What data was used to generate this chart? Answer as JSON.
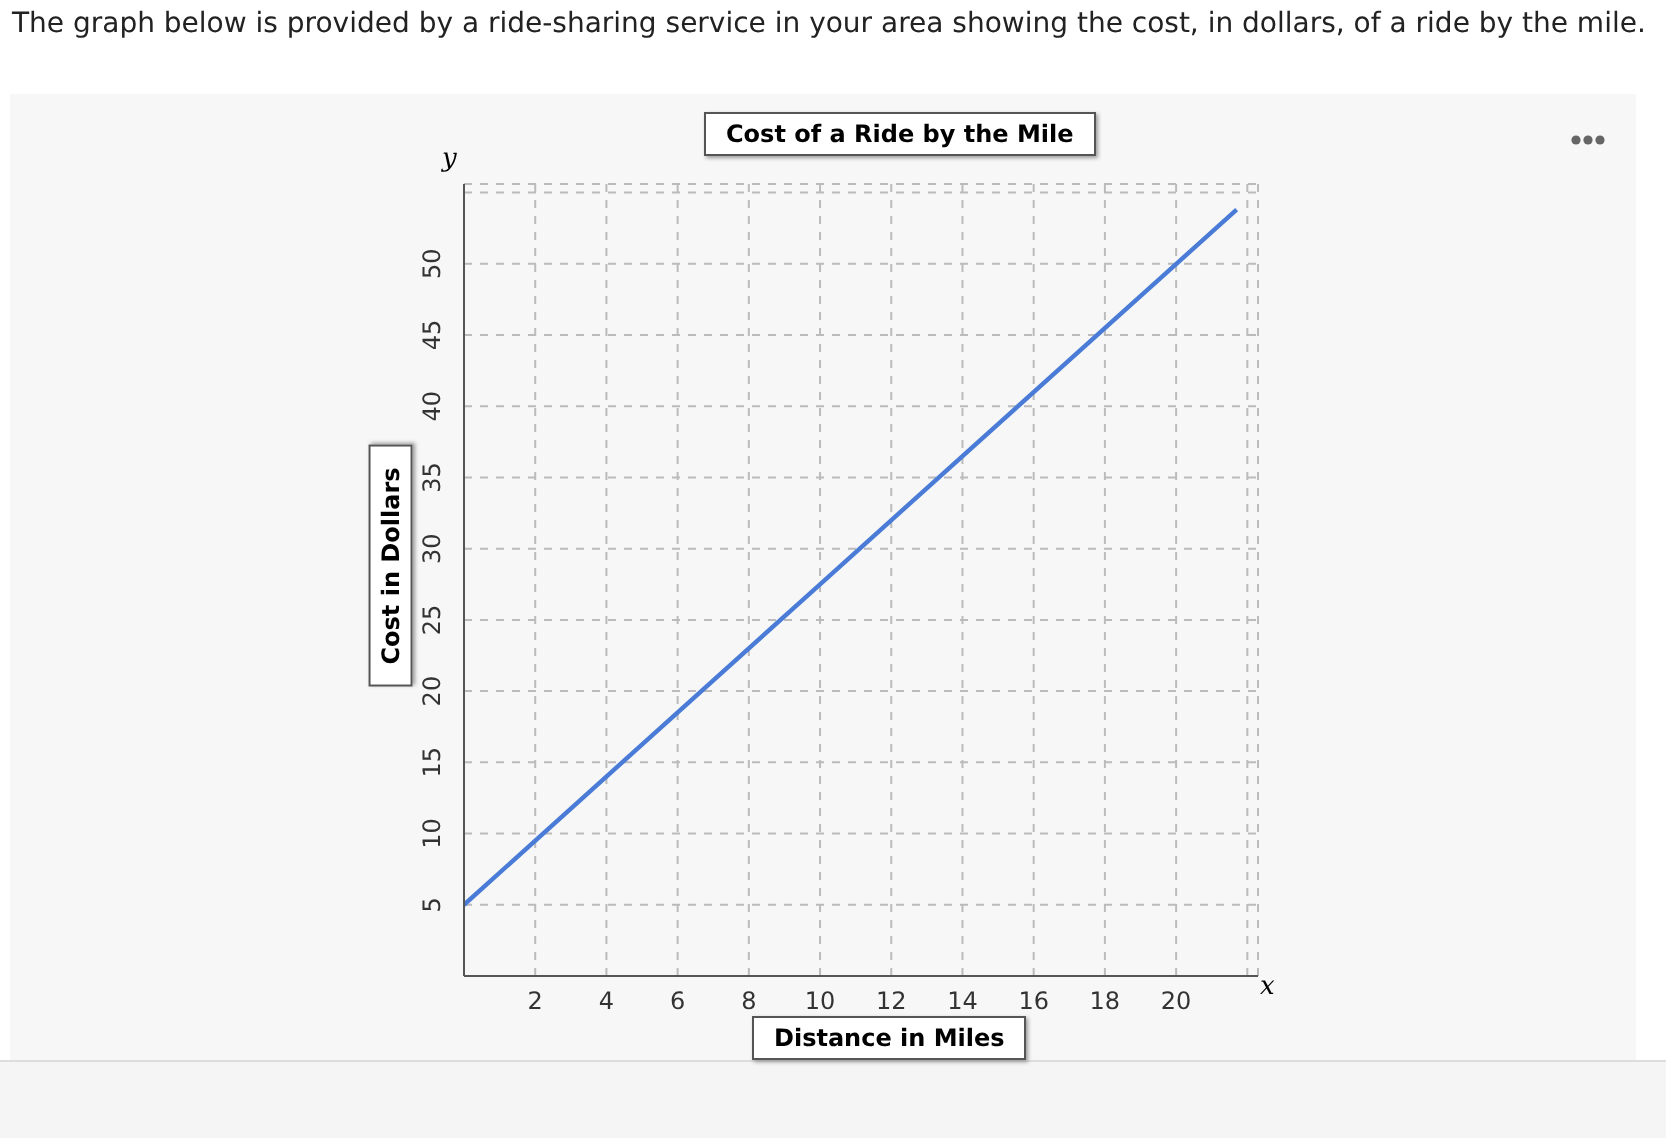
{
  "chart_data": {
    "type": "line",
    "title": "Cost of a Ride by the Mile",
    "xlabel": "Distance in Miles",
    "ylabel": "Cost in Dollars",
    "annotations": [
      "The graph below is provided by a ride-sharing service in your area showing the cost, in dollars, of a ride by the mile.",
      "x",
      "y"
    ],
    "x": [
      0,
      10,
      21.7
    ],
    "series": [
      {
        "color": "#4a7bd6",
        "values": [
          5,
          27.5,
          53.8
        ]
      }
    ],
    "xlim": [
      0,
      22.3
    ],
    "xticks": [
      2,
      4,
      6,
      8,
      10,
      12,
      14,
      16,
      18,
      20,
      {
        "value": 22,
        "label": null
      }
    ],
    "ylim": [
      0,
      55.6
    ],
    "yticks": [
      5,
      10,
      15,
      20,
      25,
      30,
      35,
      40,
      45,
      50,
      {
        "value": 55,
        "label": null
      }
    ],
    "grid": true,
    "legend": false,
    "marker": "none",
    "line_style": "solid"
  }
}
